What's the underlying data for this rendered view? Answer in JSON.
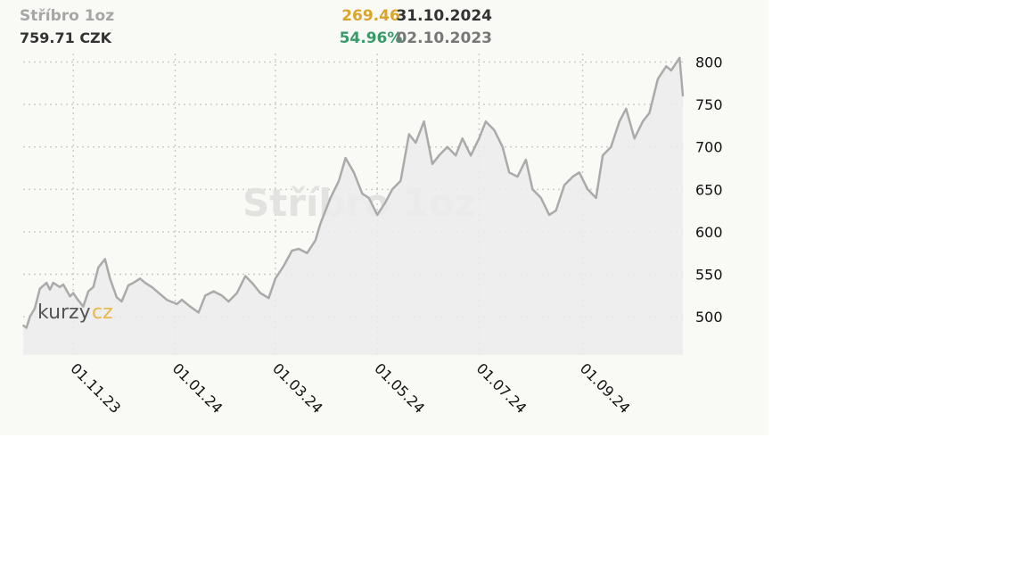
{
  "header": {
    "title": "Stříbro 1oz",
    "price": "759.71 CZK",
    "change_abs": "269.46",
    "change_pct": "54.96%",
    "date_end": "31.10.2024",
    "date_start": "02.10.2023"
  },
  "watermark": {
    "text": "Stříbro 1oz",
    "logo_part1": "kurzy",
    "logo_part2": "cz"
  },
  "colors": {
    "line": "#aaaaaa",
    "area": "#ececec",
    "grid": "#cccccc",
    "accent_gold": "#d9a52b",
    "accent_green": "#3a9a6a"
  },
  "chart_data": {
    "type": "area",
    "title": "Stříbro 1oz",
    "xlabel": "",
    "ylabel": "",
    "ylim": [
      455,
      810
    ],
    "y_ticks": [
      500,
      550,
      600,
      650,
      700,
      750,
      800
    ],
    "x_tick_labels": [
      "01.11.23",
      "01.01.24",
      "01.03.24",
      "01.05.24",
      "01.07.24",
      "01.09.24"
    ],
    "x_tick_dates": [
      "2023-11-01",
      "2024-01-01",
      "2024-03-01",
      "2024-05-01",
      "2024-07-01",
      "2024-09-01"
    ],
    "x_range": [
      "2023-10-02",
      "2024-10-31"
    ],
    "grid": true,
    "series": [
      {
        "x": [
          "2023-10-02",
          "2023-10-04",
          "2023-10-06",
          "2023-10-09",
          "2023-10-12",
          "2023-10-16",
          "2023-10-18",
          "2023-10-20",
          "2023-10-24",
          "2023-10-26",
          "2023-10-30",
          "2023-11-01",
          "2023-11-03",
          "2023-11-07",
          "2023-11-10",
          "2023-11-13",
          "2023-11-16",
          "2023-11-20",
          "2023-11-23",
          "2023-11-27",
          "2023-11-30",
          "2023-12-04",
          "2023-12-07",
          "2023-12-11",
          "2023-12-14",
          "2023-12-18",
          "2023-12-21",
          "2023-12-27",
          "2024-01-02",
          "2024-01-05",
          "2024-01-10",
          "2024-01-15",
          "2024-01-19",
          "2024-01-24",
          "2024-01-29",
          "2024-02-02",
          "2024-02-07",
          "2024-02-12",
          "2024-02-16",
          "2024-02-21",
          "2024-02-26",
          "2024-03-01",
          "2024-03-06",
          "2024-03-11",
          "2024-03-15",
          "2024-03-20",
          "2024-03-25",
          "2024-03-28",
          "2024-04-03",
          "2024-04-08",
          "2024-04-12",
          "2024-04-17",
          "2024-04-22",
          "2024-04-26",
          "2024-05-01",
          "2024-05-06",
          "2024-05-10",
          "2024-05-15",
          "2024-05-20",
          "2024-05-24",
          "2024-05-29",
          "2024-06-03",
          "2024-06-07",
          "2024-06-12",
          "2024-06-17",
          "2024-06-21",
          "2024-06-26",
          "2024-07-01",
          "2024-07-05",
          "2024-07-10",
          "2024-07-15",
          "2024-07-19",
          "2024-07-24",
          "2024-07-29",
          "2024-08-02",
          "2024-08-07",
          "2024-08-12",
          "2024-08-16",
          "2024-08-21",
          "2024-08-26",
          "2024-08-30",
          "2024-09-04",
          "2024-09-09",
          "2024-09-13",
          "2024-09-18",
          "2024-09-23",
          "2024-09-27",
          "2024-10-02",
          "2024-10-07",
          "2024-10-11",
          "2024-10-16",
          "2024-10-21",
          "2024-10-24",
          "2024-10-29",
          "2024-10-31"
        ],
        "values": [
          490,
          487,
          500,
          510,
          533,
          540,
          532,
          540,
          535,
          538,
          524,
          528,
          522,
          512,
          530,
          535,
          558,
          568,
          545,
          523,
          518,
          537,
          540,
          545,
          540,
          535,
          530,
          520,
          515,
          520,
          512,
          505,
          525,
          530,
          525,
          518,
          528,
          548,
          540,
          528,
          522,
          545,
          560,
          578,
          580,
          575,
          590,
          610,
          640,
          660,
          687,
          670,
          645,
          640,
          620,
          635,
          650,
          660,
          715,
          705,
          730,
          680,
          690,
          700,
          690,
          710,
          690,
          710,
          730,
          720,
          700,
          670,
          665,
          685,
          650,
          640,
          620,
          625,
          655,
          665,
          670,
          650,
          640,
          690,
          700,
          730,
          745,
          710,
          730,
          740,
          780,
          795,
          790,
          805,
          760
        ]
      }
    ]
  }
}
